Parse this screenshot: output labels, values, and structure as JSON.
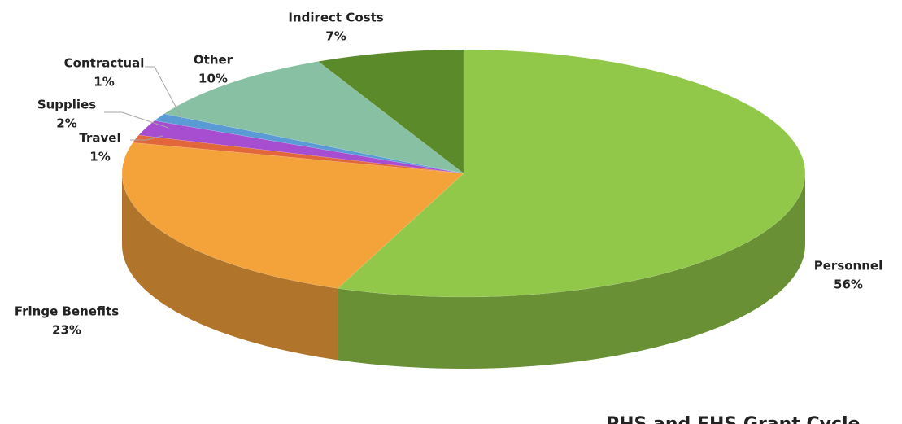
{
  "chart_data": {
    "type": "pie",
    "categories": [
      "Personnel",
      "Fringe Benefits",
      "Travel",
      "Supplies",
      "Contractual",
      "Other",
      "Indirect Costs"
    ],
    "values": [
      56,
      23,
      1,
      2,
      1,
      10,
      7
    ],
    "value_labels": [
      "56%",
      "23%",
      "1%",
      "2%",
      "1%",
      "10%",
      "7%"
    ],
    "colors": [
      "#92c84a",
      "#f4a23a",
      "#e2673a",
      "#a64dd0",
      "#5b9bd5",
      "#88c0a4",
      "#5b8a2a"
    ],
    "annotation": "PHS and EHS Grant Cycle"
  }
}
